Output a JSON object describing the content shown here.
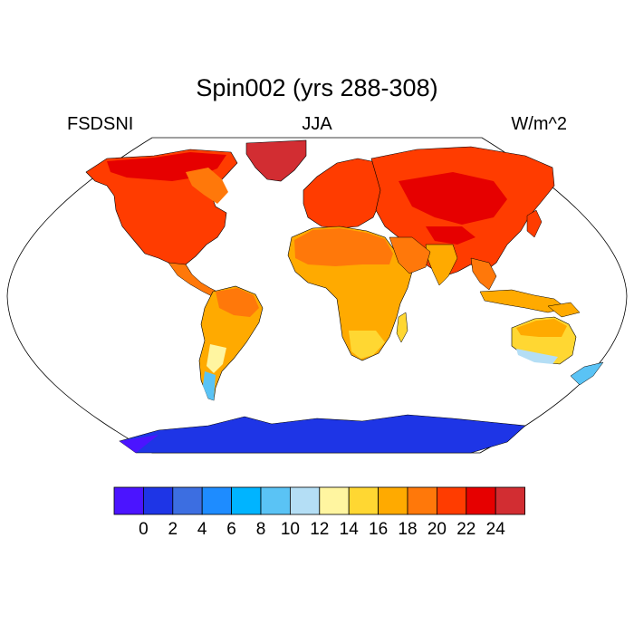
{
  "figure": {
    "title": "Spin002 (yrs 288-308)",
    "left_label": "FSDSNI",
    "center_label": "JJA",
    "right_label": "W/m^2"
  },
  "map": {
    "projection": "Robinson",
    "ocean_fill": "#ffffff",
    "coastline_color": "#000000"
  },
  "colorbar": {
    "colors": [
      "#4b14ff",
      "#1e35e6",
      "#3c6ee1",
      "#1e8cff",
      "#00b4ff",
      "#5ac3f5",
      "#b4def5",
      "#fff5a0",
      "#ffd732",
      "#ffaa00",
      "#ff780a",
      "#ff3c00",
      "#e60000",
      "#d22d32"
    ],
    "tick_labels": [
      "0",
      "2",
      "4",
      "6",
      "8",
      "10",
      "12",
      "14",
      "16",
      "18",
      "20",
      "22",
      "24"
    ]
  }
}
